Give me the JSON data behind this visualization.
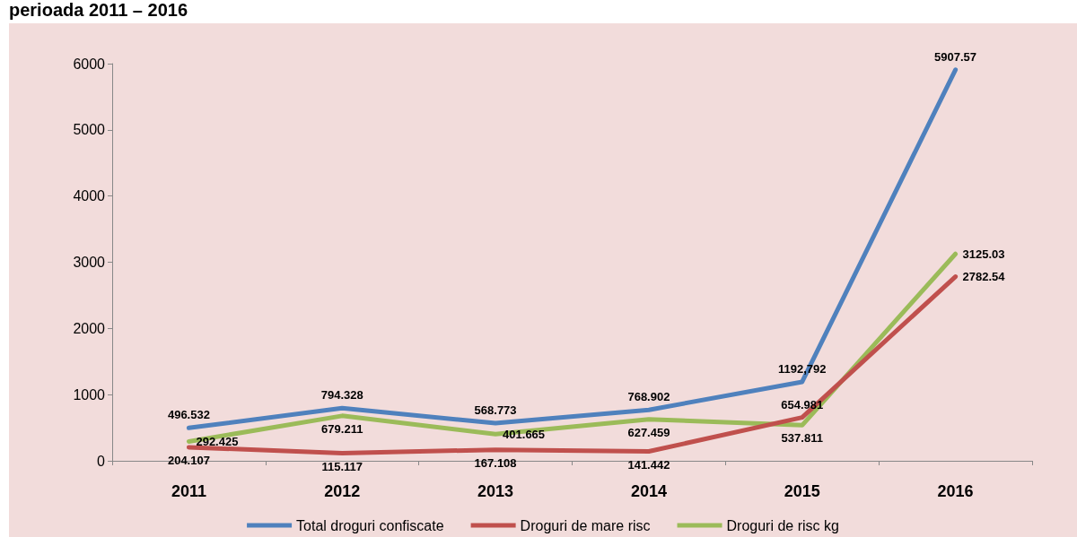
{
  "chart_data": {
    "type": "line",
    "title": "perioada 2011 – 2016",
    "categories": [
      "2011",
      "2012",
      "2013",
      "2014",
      "2015",
      "2016"
    ],
    "series": [
      {
        "name": "Total droguri confiscate",
        "color": "#4f81bd",
        "values": [
          496.532,
          794.328,
          568.773,
          768.902,
          1192.792,
          5907.57
        ],
        "value_labels": [
          "496.532",
          "794.328",
          "568.773",
          "768.902",
          "1192,792",
          "5907.57"
        ]
      },
      {
        "name": "Droguri de mare risc",
        "color": "#c0504d",
        "values": [
          204.107,
          115.117,
          167.108,
          141.442,
          654.981,
          2782.54
        ],
        "value_labels": [
          "204.107",
          "115.117",
          "167.108",
          "141.442",
          "654.981",
          "2782.54"
        ]
      },
      {
        "name": "Droguri de risc kg",
        "color": "#9bbb59",
        "values": [
          292.425,
          679.211,
          401.665,
          627.459,
          537.811,
          3125.03
        ],
        "value_labels": [
          "292.425",
          "679.211",
          "401.665",
          "627.459",
          "537.811",
          "3125.03"
        ]
      }
    ],
    "ylim": [
      0,
      6000
    ],
    "yticks": [
      0,
      1000,
      2000,
      3000,
      4000,
      5000,
      6000
    ],
    "grid": false,
    "legend": "bottom",
    "marker": "none",
    "line_style": "solid"
  }
}
